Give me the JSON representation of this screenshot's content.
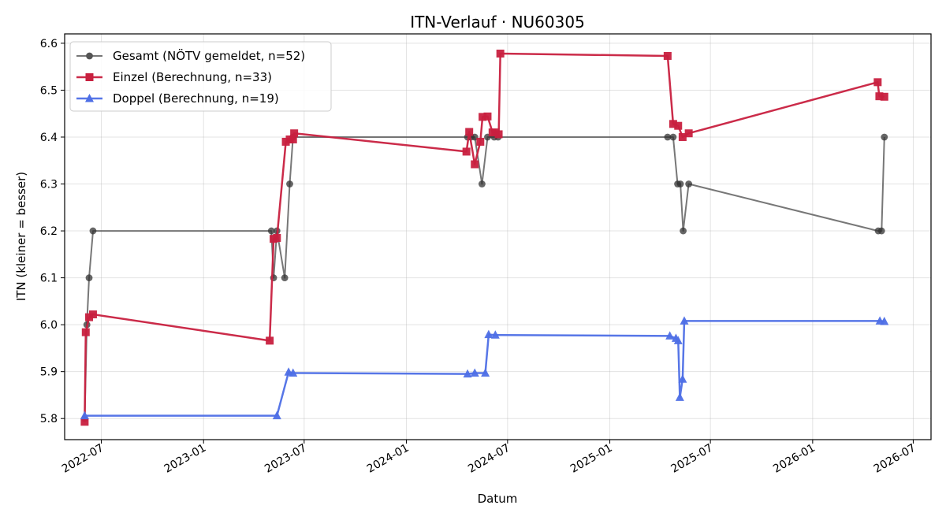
{
  "chart_data": {
    "type": "line",
    "title": "ITN-Verlauf · NU60305",
    "xlabel": "Datum",
    "ylabel": "ITN  (kleiner = besser)",
    "xlim": [
      "2022-04-26",
      "2026-08-02"
    ],
    "ylim": [
      5.755,
      6.62
    ],
    "x_ticks": [
      "2022-07-01",
      "2023-01-01",
      "2023-07-01",
      "2024-01-01",
      "2024-07-01",
      "2025-01-01",
      "2025-07-01",
      "2026-01-01",
      "2026-07-01"
    ],
    "x_tick_labels": [
      "2022-07",
      "2023-01",
      "2023-07",
      "2024-01",
      "2024-07",
      "2025-01",
      "2025-07",
      "2026-01",
      "2026-07"
    ],
    "y_ticks": [
      5.8,
      5.9,
      6.0,
      6.1,
      6.2,
      6.3,
      6.4,
      6.5,
      6.6
    ],
    "y_tick_labels": [
      "5.8",
      "5.9",
      "6.0",
      "6.1",
      "6.2",
      "6.3",
      "6.4",
      "6.5",
      "6.6"
    ],
    "grid": true,
    "legend_position": "top-left",
    "series": [
      {
        "name": "Gesamt (NÖTV gemeldet, n=52)",
        "color": "#555555",
        "marker": "circle",
        "points": [
          [
            "2022-06-01",
            5.8
          ],
          [
            "2022-06-05",
            6.0
          ],
          [
            "2022-06-09",
            6.1
          ],
          [
            "2022-06-16",
            6.2
          ],
          [
            "2023-05-03",
            6.2
          ],
          [
            "2023-05-07",
            6.1
          ],
          [
            "2023-05-13",
            6.2
          ],
          [
            "2023-05-27",
            6.1
          ],
          [
            "2023-06-05",
            6.3
          ],
          [
            "2023-06-11",
            6.4
          ],
          [
            "2024-04-20",
            6.4
          ],
          [
            "2024-04-26",
            6.4
          ],
          [
            "2024-05-03",
            6.4
          ],
          [
            "2024-05-16",
            6.3
          ],
          [
            "2024-05-26",
            6.4
          ],
          [
            "2024-06-07",
            6.4
          ],
          [
            "2024-06-14",
            6.4
          ],
          [
            "2025-04-15",
            6.4
          ],
          [
            "2025-04-25",
            6.4
          ],
          [
            "2025-05-03",
            6.3
          ],
          [
            "2025-05-08",
            6.3
          ],
          [
            "2025-05-13",
            6.2
          ],
          [
            "2025-05-23",
            6.3
          ],
          [
            "2026-04-29",
            6.2
          ],
          [
            "2026-05-05",
            6.2
          ],
          [
            "2026-05-10",
            6.4
          ]
        ]
      },
      {
        "name": "Einzel (Berechnung, n=33)",
        "color": "#c8203f",
        "marker": "square",
        "points": [
          [
            "2022-06-01",
            5.793
          ],
          [
            "2022-06-03",
            5.984
          ],
          [
            "2022-06-09",
            6.016
          ],
          [
            "2022-06-16",
            6.022
          ],
          [
            "2023-04-30",
            5.966
          ],
          [
            "2023-05-07",
            6.183
          ],
          [
            "2023-05-13",
            6.185
          ],
          [
            "2023-05-29",
            6.39
          ],
          [
            "2023-06-05",
            6.395
          ],
          [
            "2023-06-11",
            6.395
          ],
          [
            "2023-06-13",
            6.408
          ],
          [
            "2024-04-18",
            6.369
          ],
          [
            "2024-04-23",
            6.411
          ],
          [
            "2024-05-03",
            6.342
          ],
          [
            "2024-05-13",
            6.39
          ],
          [
            "2024-05-17",
            6.443
          ],
          [
            "2024-05-26",
            6.444
          ],
          [
            "2024-06-04",
            6.41
          ],
          [
            "2024-06-09",
            6.41
          ],
          [
            "2024-06-15",
            6.406
          ],
          [
            "2024-06-18",
            6.578
          ],
          [
            "2025-04-15",
            6.573
          ],
          [
            "2025-04-25",
            6.428
          ],
          [
            "2025-05-04",
            6.424
          ],
          [
            "2025-05-12",
            6.4
          ],
          [
            "2025-05-23",
            6.408
          ],
          [
            "2026-04-28",
            6.517
          ],
          [
            "2026-05-01",
            6.487
          ],
          [
            "2026-05-10",
            6.486
          ]
        ]
      },
      {
        "name": "Doppel (Berechnung, n=19)",
        "color": "#4e6fe6",
        "marker": "triangle",
        "points": [
          [
            "2022-06-01",
            5.806
          ],
          [
            "2023-05-13",
            5.806
          ],
          [
            "2023-06-03",
            5.899
          ],
          [
            "2023-06-11",
            5.897
          ],
          [
            "2024-04-20",
            5.895
          ],
          [
            "2024-05-03",
            5.897
          ],
          [
            "2024-05-22",
            5.897
          ],
          [
            "2024-05-28",
            5.979
          ],
          [
            "2024-06-09",
            5.978
          ],
          [
            "2025-04-19",
            5.976
          ],
          [
            "2025-04-30",
            5.971
          ],
          [
            "2025-05-04",
            5.966
          ],
          [
            "2025-05-07",
            5.845
          ],
          [
            "2025-05-12",
            5.884
          ],
          [
            "2025-05-15",
            6.008
          ],
          [
            "2026-05-02",
            6.008
          ],
          [
            "2026-05-10",
            6.007
          ]
        ]
      }
    ]
  }
}
